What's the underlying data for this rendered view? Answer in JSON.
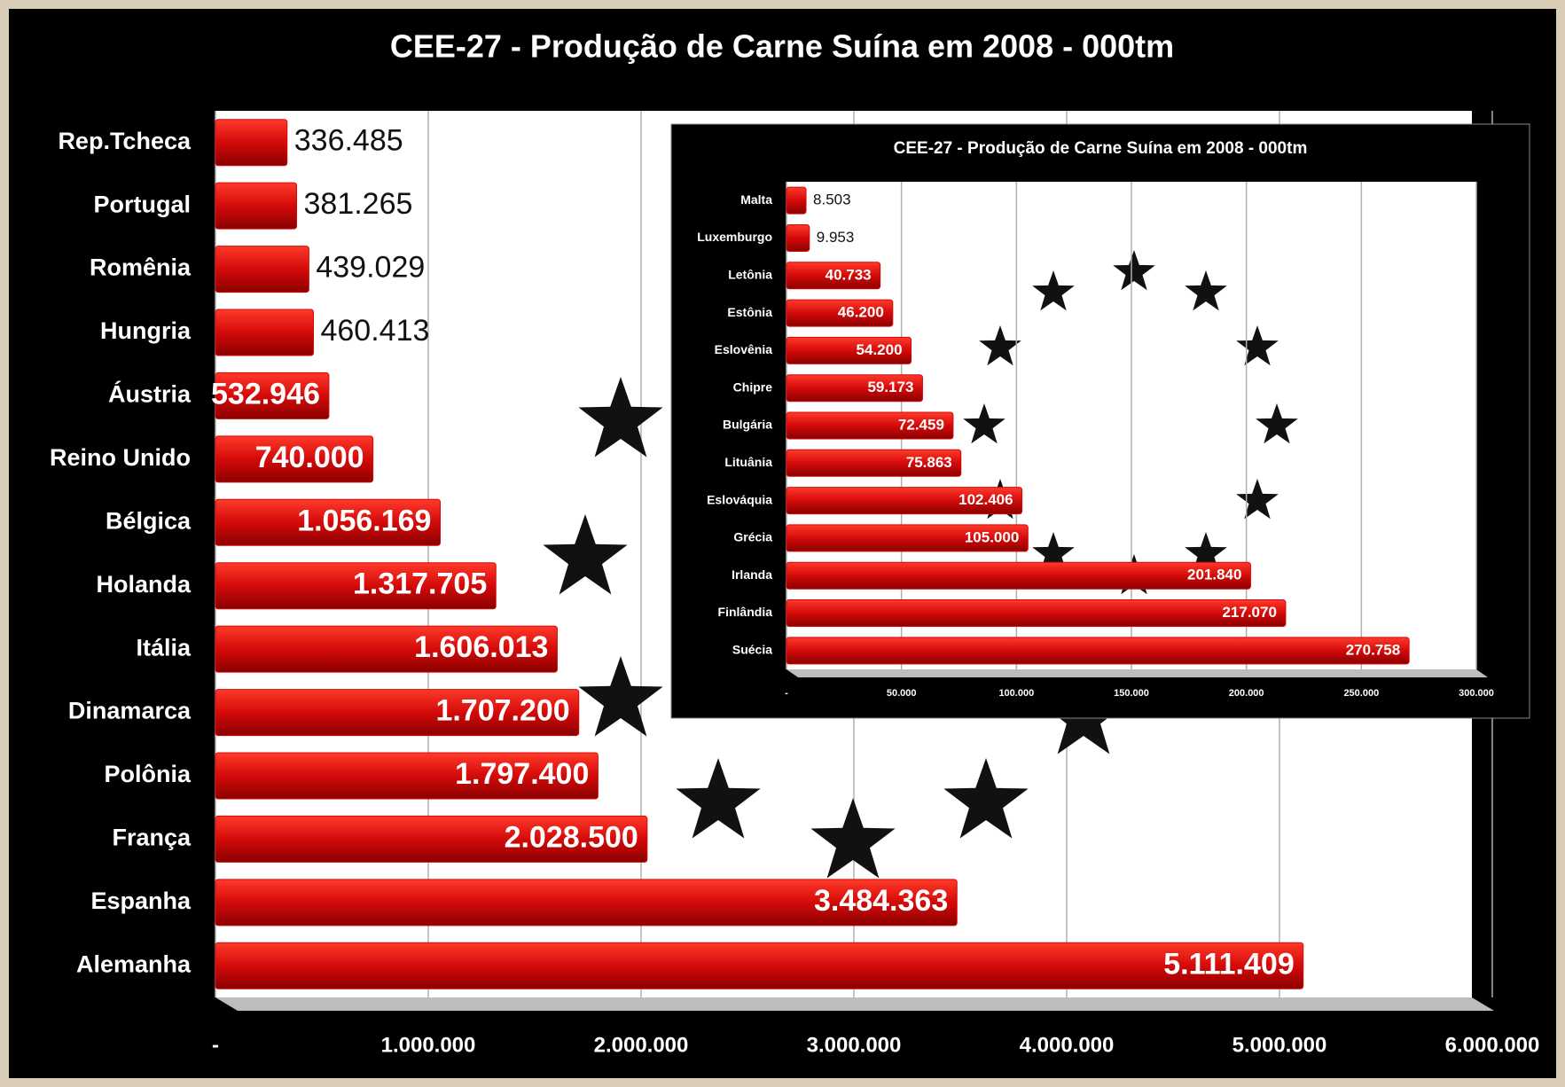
{
  "chart_data": [
    {
      "type": "barh",
      "title": "CEE-27 - Produção de Carne Suína em 2008 - 000tm",
      "categories": [
        "Rep.Tcheca",
        "Portugal",
        "Romênia",
        "Hungria",
        "Áustria",
        "Reino Unido",
        "Bélgica",
        "Holanda",
        "Itália",
        "Dinamarca",
        "Polônia",
        "França",
        "Espanha",
        "Alemanha"
      ],
      "values": [
        336485,
        381265,
        439029,
        460413,
        532946,
        740000,
        1056169,
        1317705,
        1606013,
        1707200,
        1797400,
        2028500,
        3484363,
        5111409
      ],
      "value_labels": [
        "336.485",
        "381.265",
        "439.029",
        "460.413",
        "532.946",
        "740.000",
        "1.056.169",
        "1.317.705",
        "1.606.013",
        "1.707.200",
        "1.797.400",
        "2.028.500",
        "3.484.363",
        "5.111.409"
      ],
      "color": "#d40a0a",
      "xlim": [
        0,
        6000000
      ],
      "xticks": [
        {
          "value": 0,
          "label": "-"
        },
        {
          "value": 1000000,
          "label": "1.000.000"
        },
        {
          "value": 2000000,
          "label": "2.000.000"
        },
        {
          "value": 3000000,
          "label": "3.000.000"
        },
        {
          "value": 4000000,
          "label": "4.000.000"
        },
        {
          "value": 5000000,
          "label": "5.000.000"
        },
        {
          "value": 6000000,
          "label": "6.000.000"
        }
      ],
      "grid": true
    },
    {
      "type": "barh",
      "title": "CEE-27 - Produção de Carne Suína em 2008 - 000tm",
      "categories": [
        "Malta",
        "Luxemburgo",
        "Letônia",
        "Estônia",
        "Eslovênia",
        "Chipre",
        "Bulgária",
        "Lituânia",
        "Eslováquia",
        "Grécia",
        "Irlanda",
        "Finlândia",
        "Suécia"
      ],
      "values": [
        8503,
        9953,
        40733,
        46200,
        54200,
        59173,
        72459,
        75863,
        102406,
        105000,
        201840,
        217070,
        270758
      ],
      "value_labels": [
        "8.503",
        "9.953",
        "40.733",
        "46.200",
        "54.200",
        "59.173",
        "72.459",
        "75.863",
        "102.406",
        "105.000",
        "201.840",
        "217.070",
        "270.758"
      ],
      "color": "#d40a0a",
      "xlim": [
        0,
        300000
      ],
      "xticks": [
        {
          "value": 0,
          "label": "-"
        },
        {
          "value": 50000,
          "label": "50.000"
        },
        {
          "value": 100000,
          "label": "100.000"
        },
        {
          "value": 150000,
          "label": "150.000"
        },
        {
          "value": 200000,
          "label": "200.000"
        },
        {
          "value": 250000,
          "label": "250.000"
        },
        {
          "value": 300000,
          "label": "300.000"
        }
      ],
      "grid": true
    }
  ]
}
